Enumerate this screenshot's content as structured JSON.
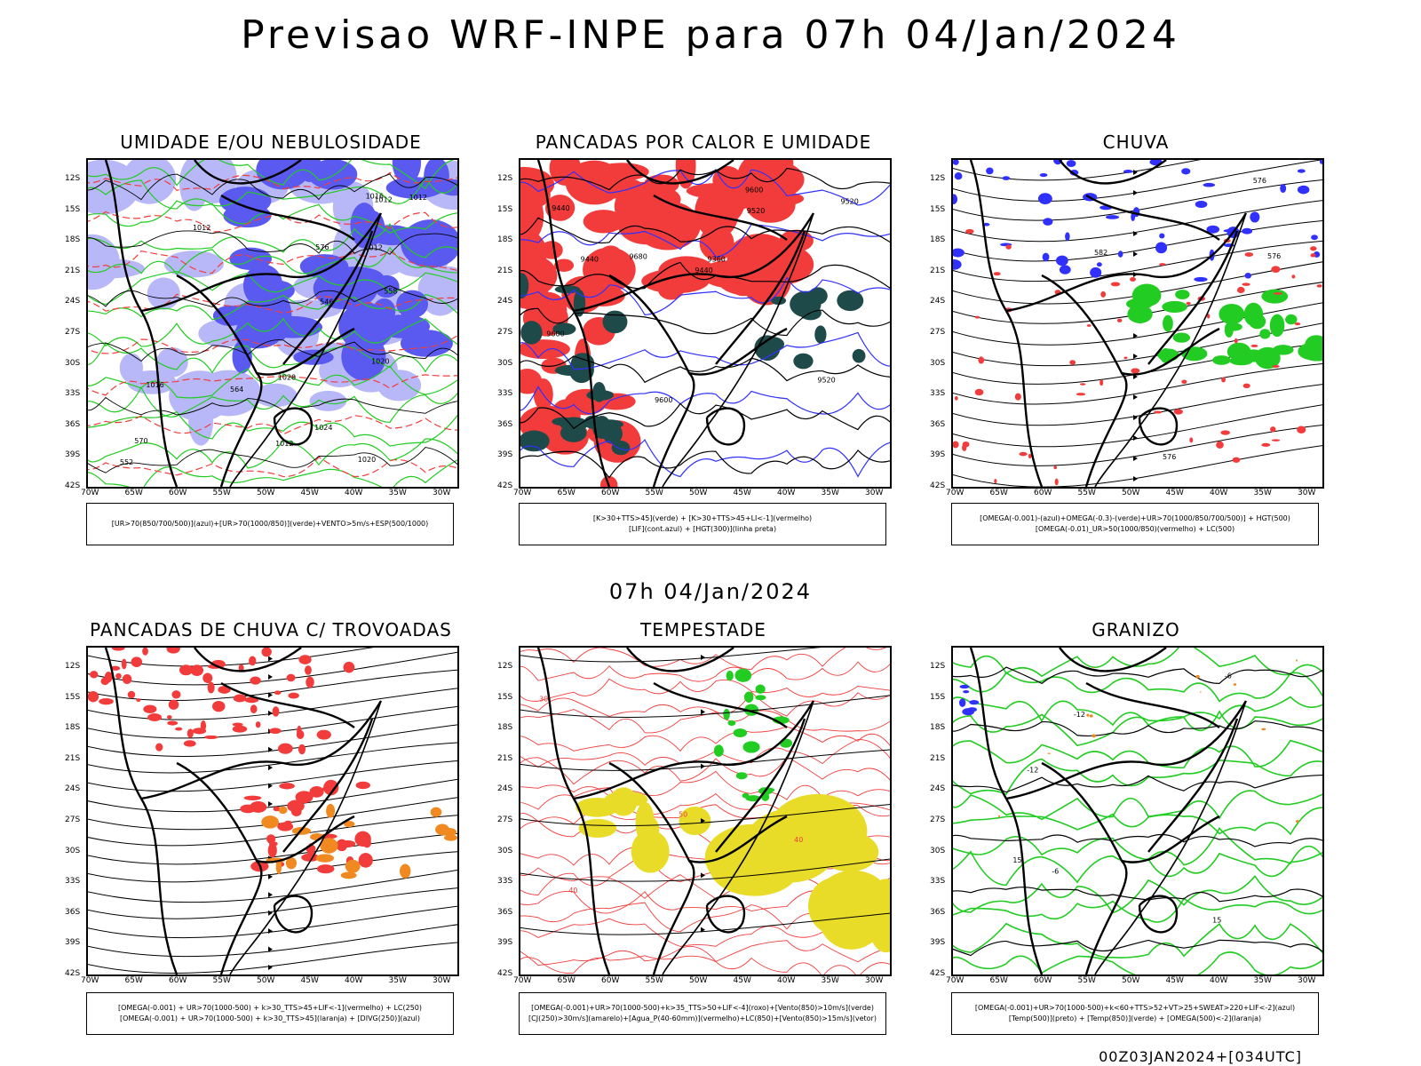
{
  "header": {
    "title": "Previsao WRF-INPE  para 07h 04/Jan/2024"
  },
  "middle": {
    "time_label": "07h 04/Jan/2024"
  },
  "footer": {
    "run_label": "00Z03JAN2024+[034UTC]"
  },
  "axes": {
    "lat_labels": [
      "12S",
      "15S",
      "18S",
      "21S",
      "24S",
      "27S",
      "30S",
      "33S",
      "36S",
      "39S",
      "42S"
    ],
    "lon_labels": [
      "70W",
      "65W",
      "60W",
      "55W",
      "50W",
      "45W",
      "40W",
      "35W",
      "30W"
    ]
  },
  "colors": {
    "red": "#f23c3c",
    "green": "#22cc22",
    "blue": "#3030ff",
    "dark_teal": "#1f4a4a",
    "orange": "#f08a20",
    "yellow": "#e8dc28",
    "lavender": "#b8b8f8",
    "violet": "#5a5af0"
  },
  "panels": [
    {
      "title": "UMIDADE E/OU NEBULOSIDADE",
      "legend": [
        "[UR>70(850/700/500)](azul)+[UR>70(1000/850)](verde)+VENTO>5m/s+ESP(500/1000)"
      ],
      "contour_labels": [
        "1012",
        "1012",
        "1012",
        "1020",
        "1012",
        "1012",
        "1016",
        "1020",
        "1024",
        "1016",
        "1028",
        "576",
        "570",
        "564",
        "558",
        "552",
        "546"
      ]
    },
    {
      "title": "PANCADAS POR CALOR E UMIDADE",
      "legend": [
        "[K>30+TTS>45](verde)  +  [K>30+TTS>45+LI<-1](vermelho)",
        "[LIF](cont.azul)  +  [HGT(300)](linha preta)"
      ],
      "contour_labels": [
        "9680",
        "9600",
        "9600",
        "9520",
        "9600",
        "9520",
        "9440",
        "9440",
        "9360",
        "9440",
        "9520"
      ]
    },
    {
      "title": "CHUVA",
      "legend": [
        "[OMEGA(-0.001)-(azul)+OMEGA(-0.3)-(verde)+UR>70(1000/850/700/500)]  +  HGT(500)",
        "[OMEGA(-0.01)_UR>50(1000/850)(vermelho)  +  LC(500)"
      ],
      "contour_labels": [
        "576",
        "582",
        "576",
        "576"
      ]
    },
    {
      "title": "PANCADAS DE CHUVA C/ TROVOADAS",
      "legend": [
        "[OMEGA(-0.001)  +  UR>70(1000-500)  +  k>30_TTS>45+LIF<-1](vermelho)  +  LC(250)",
        "[OMEGA(-0.001)  +  UR>70(1000-500)  +  k>30_TTS>45](laranja)  +  [DIVG(250)](azul)"
      ],
      "contour_labels": []
    },
    {
      "title": "TEMPESTADE",
      "legend": [
        "[OMEGA(-0.001)+UR>70(1000-500)+k>35_TTS>50+LIF<-4](roxo)+[Vento(850)>10m/s](verde)",
        "[CJ(250)>30m/s](amarelo)+[Agua_P(40-60mm)](vermelho)+LC(850)+[Vento(850)>15m/s](vetor)"
      ],
      "contour_labels": [
        "50",
        "40",
        "40",
        "30"
      ]
    },
    {
      "title": "GRANIZO",
      "legend": [
        "[OMEGA(-0.001)+UR>70(1000-500)+k<60+TTS>52+VT>25+SWEAT>220+LIF<-2](azul)",
        "[Temp(500)](preto)  +  [Temp(850)](verde)  +  [OMEGA(500)<-2](laranja)"
      ],
      "contour_labels": [
        "-6",
        "-6",
        "-12",
        "15",
        "-12",
        "15"
      ]
    }
  ]
}
